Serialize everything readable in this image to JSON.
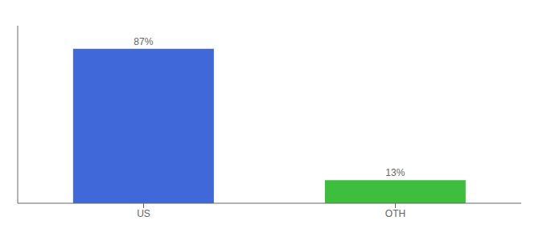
{
  "chart_data": {
    "type": "bar",
    "categories": [
      "US",
      "OTH"
    ],
    "values": [
      87,
      13
    ],
    "value_labels": [
      "87%",
      "13%"
    ],
    "colors": [
      "#4168d9",
      "#3dbf3d"
    ],
    "ylim": [
      0,
      100
    ],
    "data_labels": true,
    "tick_labels": "x",
    "grid": false
  }
}
